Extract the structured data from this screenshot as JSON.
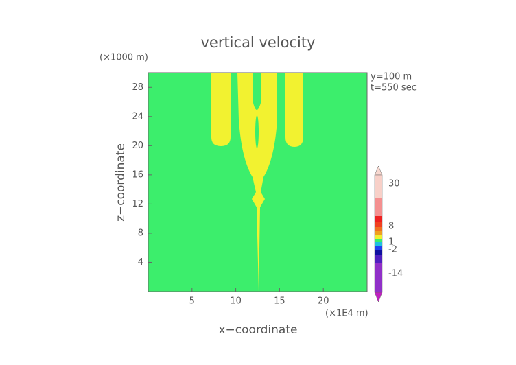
{
  "chart_data": {
    "type": "contour",
    "title": "vertical velocity",
    "x_label": "x−coordinate",
    "y_label": "z−coordinate",
    "x_unit": "(×1E4 m)",
    "y_unit": "(×1000 m)",
    "annotations": [
      "y=100 m",
      "t=550 sec"
    ],
    "xlim": [
      0,
      25
    ],
    "xticks": [
      5,
      10,
      15,
      20
    ],
    "ylim": [
      0,
      30
    ],
    "yticks": [
      4,
      8,
      12,
      16,
      20,
      24,
      28
    ],
    "colorbar_ticks": [
      30,
      8,
      1,
      -2,
      -14
    ]
  }
}
